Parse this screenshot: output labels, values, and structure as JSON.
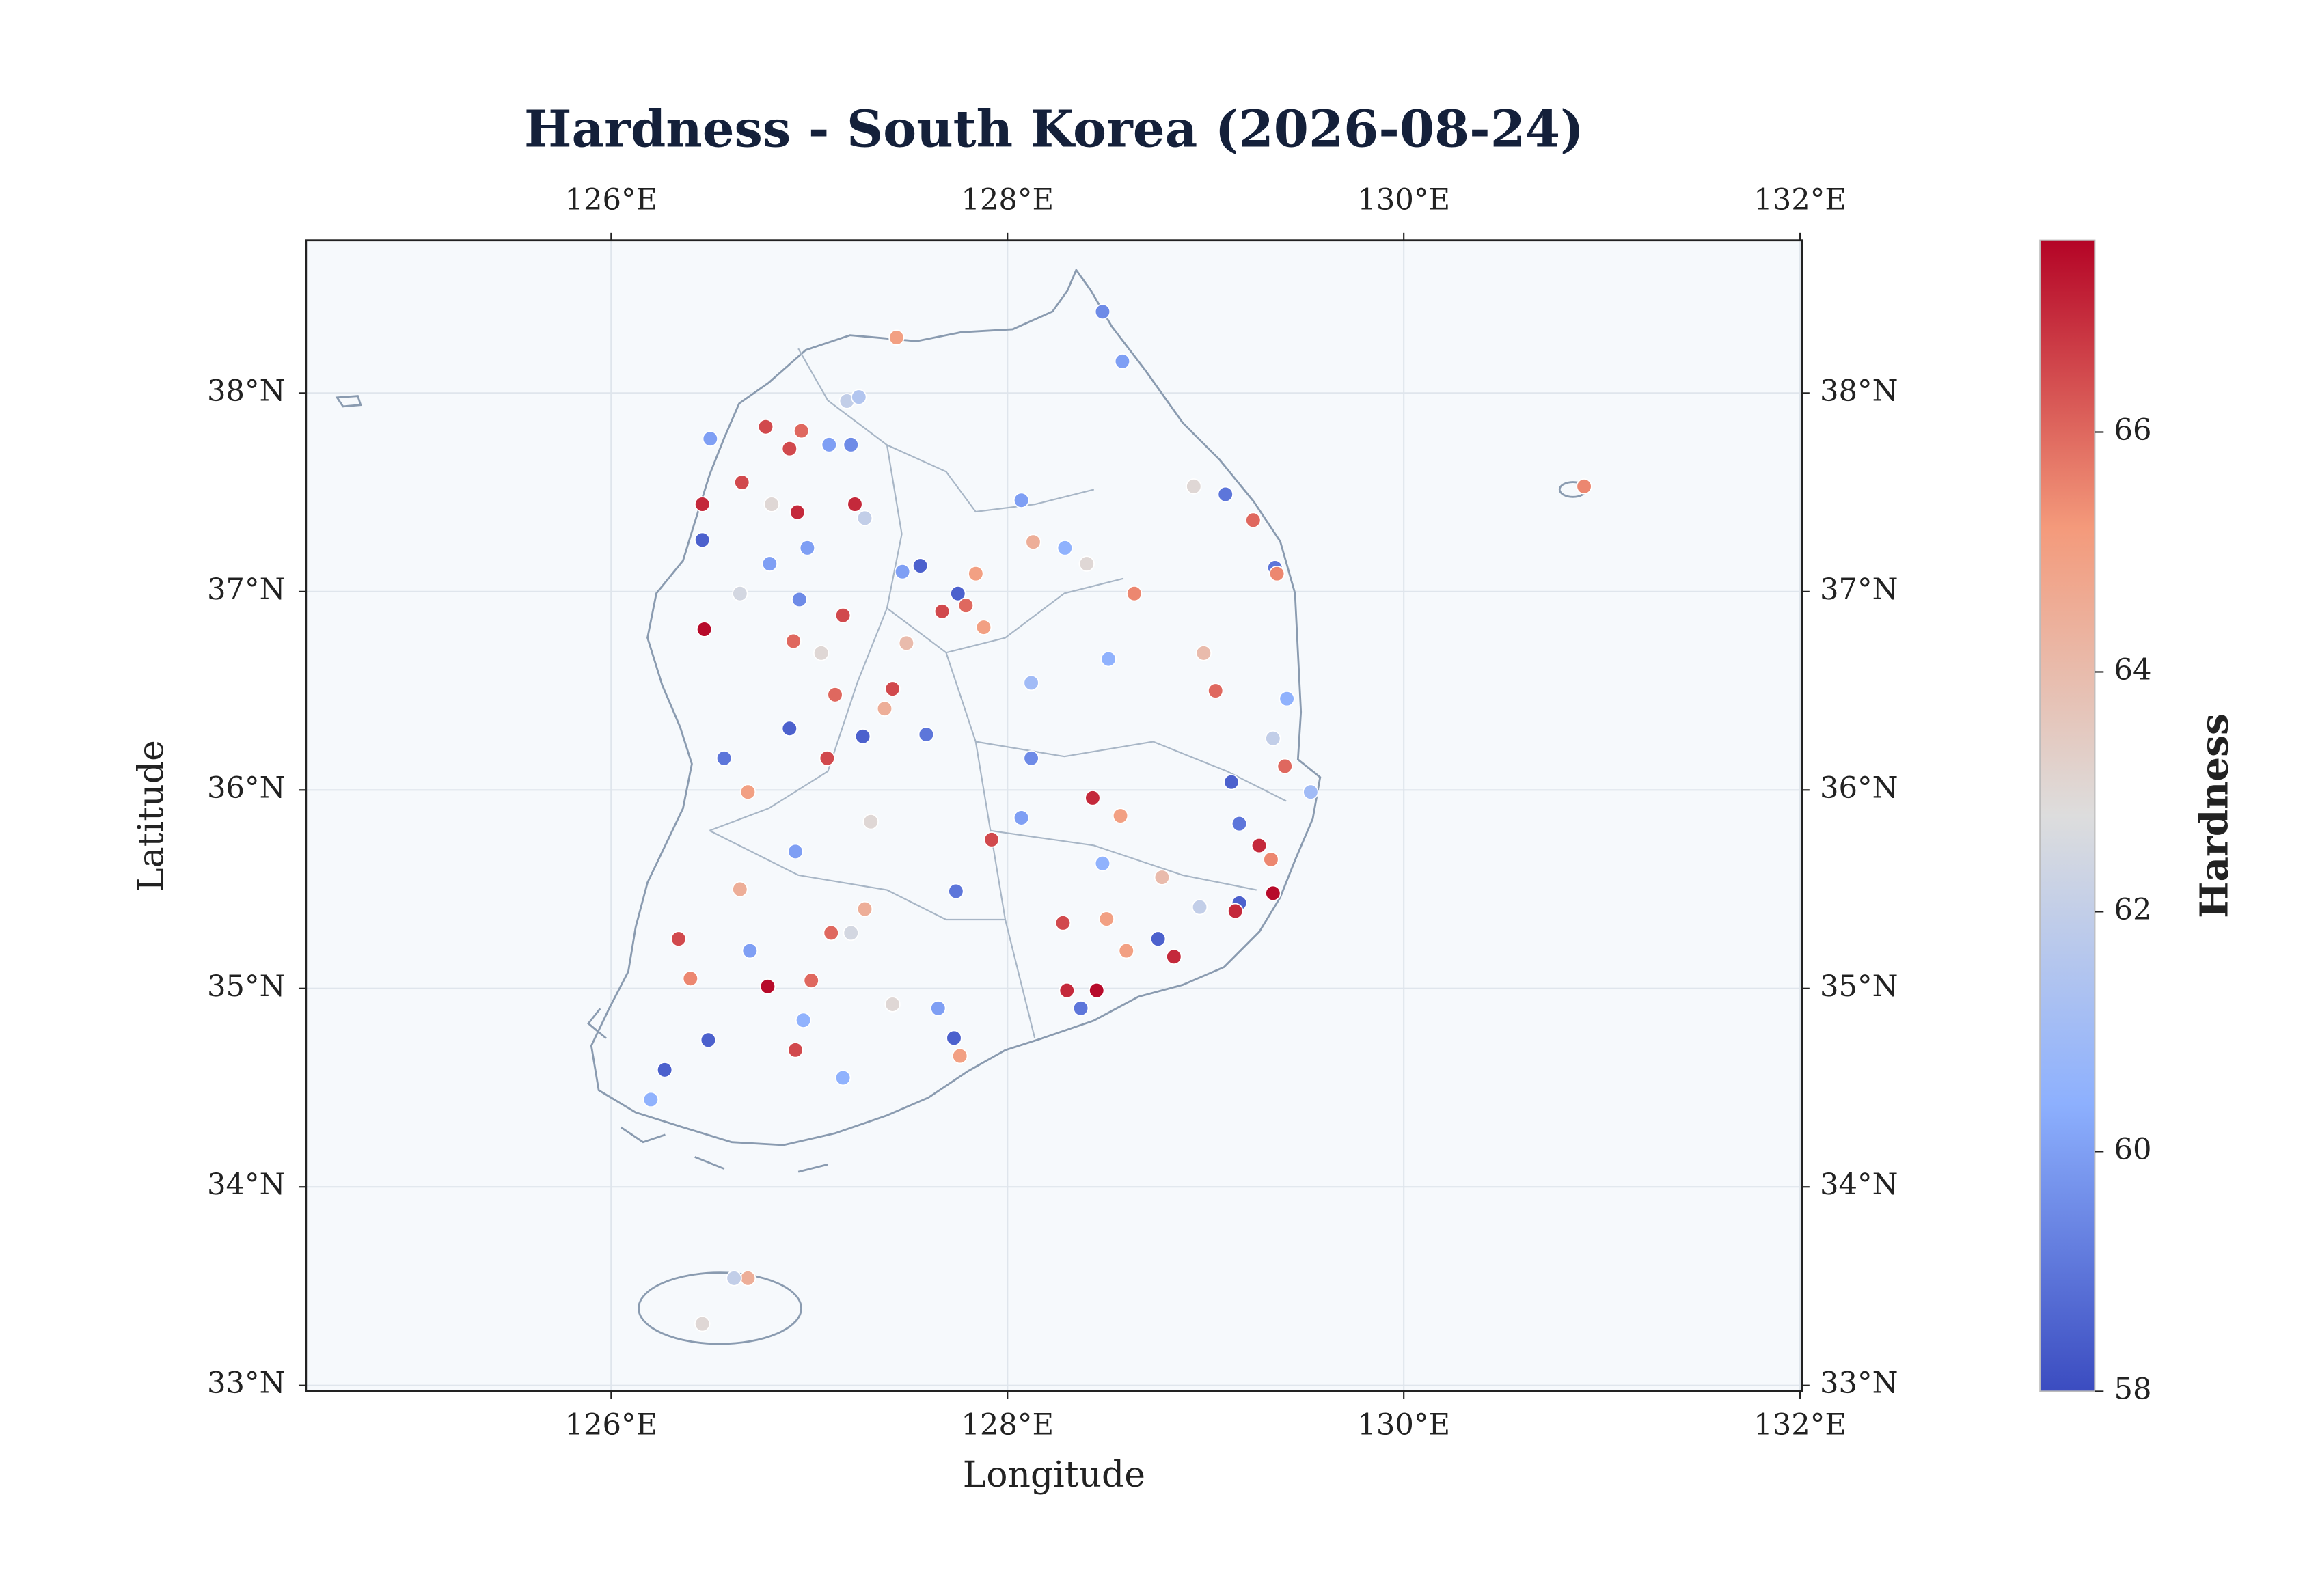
{
  "chart_data": {
    "type": "scatter",
    "title": "Hardness - South Korea (2026-08-24)",
    "x_label": "Longitude",
    "y_label": "Latitude",
    "colorbar_label": "Hardness",
    "xlim": [
      124.46,
      132.01
    ],
    "ylim": [
      32.97,
      38.77
    ],
    "xticks": [
      {
        "value": 126,
        "label": "126°E"
      },
      {
        "value": 128,
        "label": "128°E"
      },
      {
        "value": 130,
        "label": "130°E"
      },
      {
        "value": 132,
        "label": "132°E"
      }
    ],
    "yticks": [
      {
        "value": 33,
        "label": "33°N"
      },
      {
        "value": 34,
        "label": "34°N"
      },
      {
        "value": 35,
        "label": "35°N"
      },
      {
        "value": 36,
        "label": "36°N"
      },
      {
        "value": 37,
        "label": "37°N"
      },
      {
        "value": 38,
        "label": "38°N"
      }
    ],
    "clim": [
      58,
      67.6
    ],
    "colorbar_ticks": [
      58,
      60,
      62,
      64,
      66
    ],
    "colormap_colors": [
      "#3b4cc0",
      "#8db0fe",
      "#dddddd",
      "#f49a7b",
      "#b40426"
    ],
    "grid": true,
    "x": [
      128.48,
      128.58,
      127.44,
      126.46,
      126.46,
      126.47,
      126.5,
      126.78,
      126.96,
      126.9,
      127.1,
      127.21,
      127.19,
      127.25,
      126.66,
      126.94,
      126.81,
      126.99,
      126.8,
      126.65,
      126.95,
      127.17,
      126.92,
      127.06,
      127.28,
      127.23,
      127.47,
      127.56,
      127.67,
      127.75,
      127.84,
      127.88,
      128.07,
      128.13,
      128.29,
      128.4,
      128.64,
      128.94,
      129.1,
      129.24,
      129.35,
      129.36,
      128.99,
      129.05,
      129.41,
      129.34,
      129.4,
      129.13,
      129.53,
      128.43,
      128.12,
      128.51,
      127.79,
      127.42,
      127.59,
      127.27,
      126.9,
      127.09,
      126.57,
      126.69,
      127.13,
      127.92,
      127.74,
      128.07,
      128.57,
      129.17,
      129.27,
      129.33,
      129.34,
      129.17,
      129.15,
      128.84,
      128.76,
      128.28,
      128.5,
      128.3,
      128.45,
      128.37,
      127.73,
      127.76,
      127.65,
      127.28,
      127.21,
      127.11,
      126.93,
      126.79,
      127.01,
      126.93,
      126.97,
      126.34,
      126.4,
      126.49,
      126.27,
      126.2,
      126.69,
      126.62,
      126.46,
      130.91,
      127.42,
      127.17,
      127.31,
      126.65,
      126.7,
      128.12,
      128.48,
      128.78,
      128.97,
      128.6,
      127.38,
      127.49
    ],
    "y": [
      38.41,
      38.16,
      38.28,
      37.44,
      37.26,
      36.81,
      37.77,
      37.83,
      37.81,
      37.72,
      37.74,
      37.74,
      37.96,
      37.98,
      37.55,
      37.4,
      37.44,
      37.22,
      37.14,
      36.99,
      36.96,
      36.88,
      36.75,
      36.69,
      37.37,
      37.44,
      37.1,
      37.13,
      36.9,
      36.99,
      37.09,
      36.82,
      37.46,
      37.25,
      37.22,
      37.14,
      36.99,
      37.53,
      37.49,
      37.36,
      37.12,
      37.09,
      36.69,
      36.5,
      36.46,
      36.26,
      36.12,
      36.04,
      35.99,
      35.96,
      36.16,
      36.66,
      36.93,
      36.51,
      36.28,
      36.27,
      36.31,
      36.16,
      36.16,
      35.99,
      36.48,
      35.75,
      35.49,
      35.86,
      35.87,
      35.83,
      35.72,
      35.65,
      35.48,
      35.43,
      35.39,
      35.16,
      35.25,
      35.33,
      35.35,
      34.99,
      34.99,
      34.9,
      34.75,
      34.66,
      34.9,
      35.4,
      35.28,
      35.28,
      35.69,
      35.01,
      35.04,
      34.69,
      34.84,
      35.25,
      35.05,
      34.74,
      34.59,
      34.44,
      33.54,
      33.54,
      33.31,
      37.53,
      34.92,
      34.55,
      35.84,
      35.5,
      35.19,
      36.54,
      35.63,
      35.56,
      35.41,
      35.19,
      36.41,
      36.74
    ],
    "values": [
      59.5,
      60,
      65,
      67,
      58.5,
      67.5,
      60,
      66.5,
      66,
      66.5,
      60,
      59.5,
      62,
      61.5,
      66.5,
      67,
      63,
      60,
      60,
      62.5,
      59.5,
      66.5,
      66,
      63,
      62,
      67,
      60,
      58.5,
      66.5,
      58.5,
      65,
      65,
      60,
      64.5,
      60.5,
      63,
      65.5,
      63,
      59,
      66,
      59,
      65.5,
      64,
      66,
      60.5,
      62,
      66,
      58.5,
      61,
      67,
      59.5,
      60.5,
      66,
      66.5,
      59,
      58.5,
      58.5,
      66.5,
      59,
      65,
      66,
      66.5,
      59,
      60,
      65,
      59,
      67,
      65.5,
      67.5,
      58.5,
      67,
      67,
      58.5,
      66.5,
      65,
      67,
      67.5,
      59,
      58.5,
      65,
      60,
      64.5,
      62.5,
      66,
      60,
      67.5,
      66,
      66.5,
      60.5,
      66.5,
      65.5,
      58.5,
      58.5,
      60.5,
      64.5,
      62,
      63,
      65.5,
      63,
      60.5,
      63,
      64.5,
      60,
      61,
      60.5,
      64,
      62,
      65,
      64.5,
      64
    ]
  }
}
